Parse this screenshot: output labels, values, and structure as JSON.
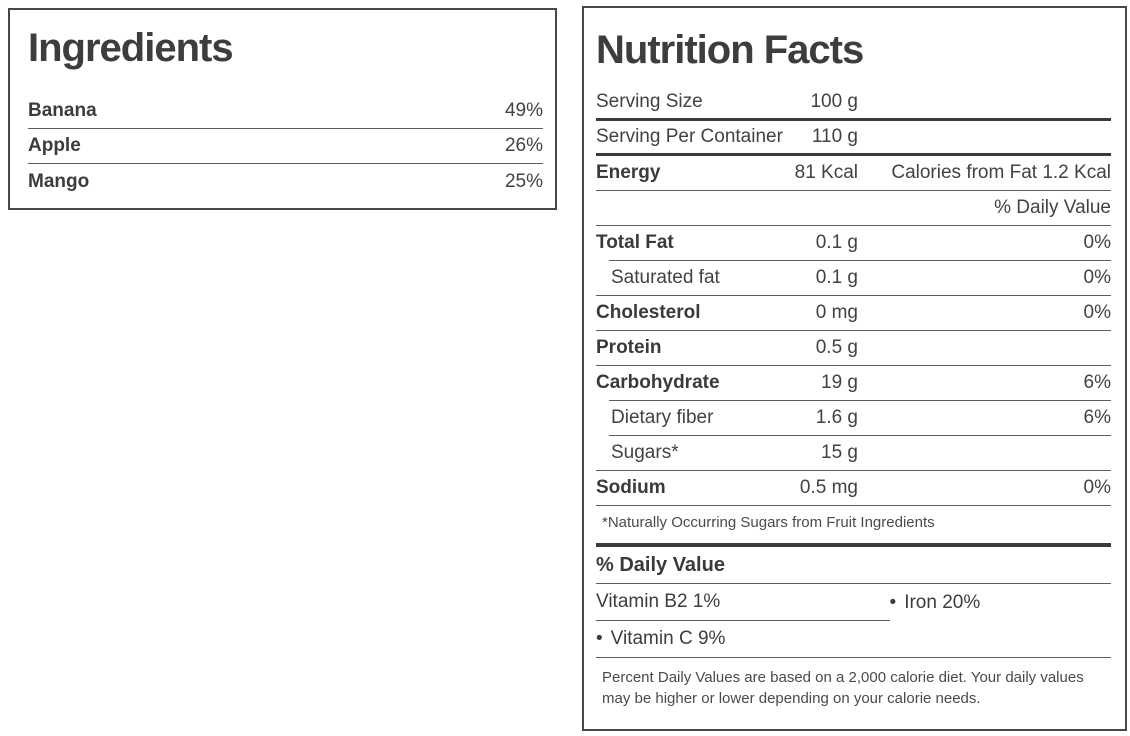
{
  "ingredients": {
    "title": "Ingredients",
    "items": [
      {
        "name": "Banana",
        "percent": "49%"
      },
      {
        "name": "Apple",
        "percent": "26%"
      },
      {
        "name": "Mango",
        "percent": "25%"
      }
    ]
  },
  "nutrition": {
    "title": "Nutrition Facts",
    "serving": [
      {
        "label": "Serving Size",
        "amount": "100 g"
      },
      {
        "label": "Serving Per Container",
        "amount": "110 g"
      }
    ],
    "energy": {
      "label": "Energy",
      "amount": "81 Kcal",
      "calories_from_fat": "Calories from Fat 1.2 Kcal"
    },
    "daily_value_column_header": "% Daily Value",
    "nutrients": [
      {
        "label": "Total Fat",
        "amount": "0.1 g",
        "percent": "0%"
      },
      {
        "label": "Saturated fat",
        "amount": "0.1 g",
        "percent": "0%"
      },
      {
        "label": "Cholesterol",
        "amount": "0 mg",
        "percent": "0%"
      },
      {
        "label": "Protein",
        "amount": "0.5 g",
        "percent": ""
      },
      {
        "label": "Carbohydrate",
        "amount": "19 g",
        "percent": "6%"
      },
      {
        "label": "Dietary fiber",
        "amount": "1.6 g",
        "percent": "6%"
      },
      {
        "label": "Sugars*",
        "amount": "15 g",
        "percent": ""
      },
      {
        "label": "Sodium",
        "amount": "0.5 mg",
        "percent": "0%"
      }
    ],
    "sugars_footnote": "*Naturally Occurring Sugars from Fruit Ingredients",
    "daily_value_section": {
      "heading": "% Daily Value",
      "vitamins": [
        {
          "bullet": "",
          "text": "Vitamin B2 1%"
        },
        {
          "bullet": "•",
          "text": "Iron 20%"
        },
        {
          "bullet": "•",
          "text": "Vitamin C 9%"
        }
      ]
    },
    "footnote": "Percent Daily Values are based on a 2,000 calorie diet. Your daily values may be higher or lower depending on your calorie needs."
  }
}
